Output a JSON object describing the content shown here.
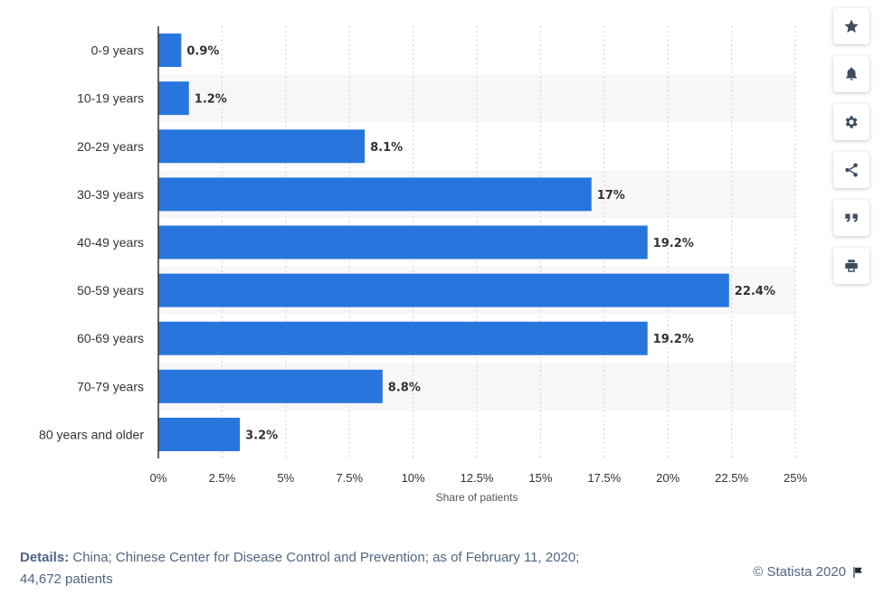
{
  "chart_data": {
    "type": "bar",
    "orientation": "horizontal",
    "categories": [
      "0-9 years",
      "10-19 years",
      "20-29 years",
      "30-39 years",
      "40-49 years",
      "50-59 years",
      "60-69 years",
      "70-79 years",
      "80 years and older"
    ],
    "values": [
      0.9,
      1.2,
      8.1,
      17,
      19.2,
      22.4,
      19.2,
      8.8,
      3.2
    ],
    "value_labels": [
      "0.9%",
      "1.2%",
      "8.1%",
      "17%",
      "19.2%",
      "22.4%",
      "19.2%",
      "8.8%",
      "3.2%"
    ],
    "xlabel": "Share of patients",
    "xlim": [
      0,
      25
    ],
    "ticks": [
      0,
      2.5,
      5,
      7.5,
      10,
      12.5,
      15,
      17.5,
      20,
      22.5,
      25
    ],
    "tick_labels": [
      "0%",
      "2.5%",
      "5%",
      "7.5%",
      "10%",
      "12.5%",
      "15%",
      "17.5%",
      "20%",
      "22.5%",
      "25%"
    ],
    "bar_color": "#2876dd",
    "grid": true,
    "alternating_row_shading": "#f7f7f7"
  },
  "toolbar": {
    "buttons": [
      "star-icon",
      "bell-icon",
      "gear-icon",
      "share-icon",
      "quote-icon",
      "print-icon"
    ]
  },
  "footer": {
    "details_label": "Details:",
    "details_line1": "China; Chinese Center for Disease Control and Prevention; as of February 11, 2020;",
    "details_line2": "44,672 patients",
    "copyright": "© Statista 2020"
  }
}
